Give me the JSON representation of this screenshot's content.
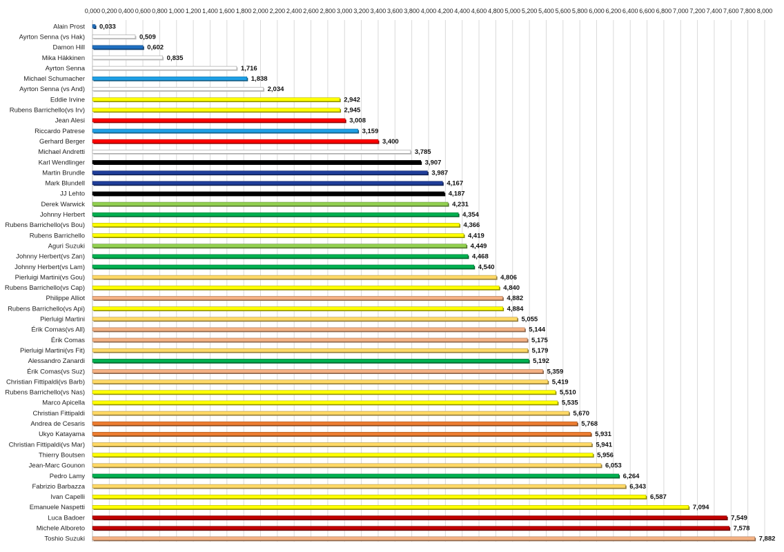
{
  "chart_data": {
    "type": "bar",
    "orientation": "horizontal",
    "title": "",
    "xlabel": "",
    "ylabel": "",
    "xlim": [
      0,
      8
    ],
    "x_tick_step": 0.2,
    "x_tick_position": "top",
    "grid": true,
    "legend": "none",
    "categories": [
      "Alain Prost",
      "Ayrton Senna (vs Hak)",
      "Damon Hill",
      "Mika Häkkinen",
      "Ayrton Senna",
      "Michael Schumacher",
      "Ayrton Senna (vs And)",
      "Eddie Irvine",
      "Rubens Barrichello(vs Irv)",
      "Jean Alesi",
      "Riccardo Patrese",
      "Gerhard Berger",
      "Michael Andretti",
      "Karl Wendlinger",
      "Martin Brundle",
      "Mark Blundell",
      "JJ Lehto",
      "Derek Warwick",
      "Johnny Herbert",
      "Rubens Barrichello(vs Bou)",
      "Rubens Barrichello",
      "Aguri Suzuki",
      "Johnny Herbert(vs Zan)",
      "Johnny Herbert(vs Lam)",
      "Pierluigi Martini(vs Gou)",
      "Rubens Barrichello(vs Cap)",
      "Philippe Alliot",
      "Rubens Barrichello(vs Api)",
      "Pierluigi Martini",
      "Érik Comas(vs All)",
      "Érik Comas",
      "Pierluigi Martini(vs Fit)",
      "Alessandro Zanardi",
      "Érik Comas(vs Suz)",
      "Christian Fittipaldi(vs Barb)",
      "Rubens Barrichello(vs Nas)",
      "Marco Apicella",
      "Christian Fittipaldi",
      "Andrea de Cesaris",
      "Ukyo Katayama",
      "Christian Fittipaldi(vs Mar)",
      "Thierry Boutsen",
      "Jean-Marc Gounon",
      "Pedro Lamy",
      "Fabrizio Barbazza",
      "Ivan Capelli",
      "Emanuele Naspetti",
      "Luca Badoer",
      "Michele Alboreto",
      "Toshio Suzuki"
    ],
    "values": [
      0.033,
      0.509,
      0.602,
      0.835,
      1.716,
      1.838,
      2.034,
      2.942,
      2.945,
      3.008,
      3.159,
      3.4,
      3.785,
      3.907,
      3.987,
      4.167,
      4.187,
      4.231,
      4.354,
      4.366,
      4.419,
      4.449,
      4.468,
      4.54,
      4.806,
      4.84,
      4.882,
      4.884,
      5.055,
      5.144,
      5.175,
      5.179,
      5.192,
      5.359,
      5.419,
      5.51,
      5.535,
      5.67,
      5.768,
      5.931,
      5.941,
      5.956,
      6.053,
      6.264,
      6.343,
      6.587,
      7.094,
      7.549,
      7.578,
      7.882
    ],
    "value_labels": [
      "0,033",
      "0,509",
      "0,602",
      "0,835",
      "1,716",
      "1,838",
      "2,034",
      "2,942",
      "2,945",
      "3,008",
      "3,159",
      "3,400",
      "3,785",
      "3,907",
      "3,987",
      "4,167",
      "4,187",
      "4,231",
      "4,354",
      "4,366",
      "4,419",
      "4,449",
      "4,468",
      "4,540",
      "4,806",
      "4,840",
      "4,882",
      "4,884",
      "5,055",
      "5,144",
      "5,175",
      "5,179",
      "5,192",
      "5,359",
      "5,419",
      "5,510",
      "5,535",
      "5,670",
      "5,768",
      "5,931",
      "5,941",
      "5,956",
      "6,053",
      "6,264",
      "6,343",
      "6,587",
      "7,094",
      "7,549",
      "7,578",
      "7,882"
    ],
    "colors": [
      "#1f6fc0",
      "#ffffff",
      "#1f6fc0",
      "#ffffff",
      "#ffffff",
      "#1ea0e6",
      "#ffffff",
      "#ffff00",
      "#ffff00",
      "#ff0000",
      "#1ea0e6",
      "#ff0000",
      "#ffffff",
      "#000000",
      "#1f3d99",
      "#1f3d99",
      "#000000",
      "#92d050",
      "#00b050",
      "#ffff00",
      "#ffff00",
      "#92d050",
      "#00b050",
      "#00b050",
      "#ffd966",
      "#ffff00",
      "#f4b183",
      "#ffff00",
      "#ffd966",
      "#f4b183",
      "#f4b183",
      "#ffd966",
      "#00b050",
      "#f4b183",
      "#ffd966",
      "#ffff00",
      "#ffff00",
      "#ffd966",
      "#ed7d31",
      "#ed7d31",
      "#ffd966",
      "#ffff00",
      "#ffd966",
      "#00b050",
      "#ffd966",
      "#ffff00",
      "#ffff00",
      "#c00000",
      "#c00000",
      "#f4b183"
    ]
  }
}
